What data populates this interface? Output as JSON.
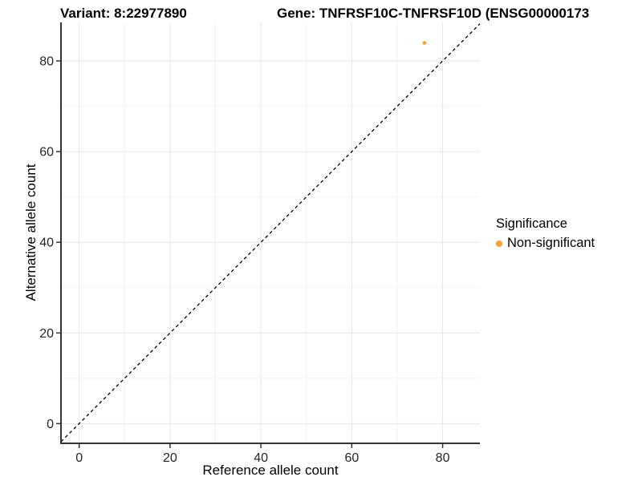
{
  "titles": {
    "variant": "Variant: 8:22977890",
    "gene": "Gene: TNFRSF10C-TNFRSF10D (ENSG00000173"
  },
  "chart_data": {
    "type": "scatter",
    "xlabel": "Reference allele count",
    "ylabel": "Alternative allele count",
    "xlim": [
      -4,
      88.2
    ],
    "ylim": [
      -4.35,
      88.5
    ],
    "x_ticks": [
      0,
      20,
      40,
      60,
      80
    ],
    "y_ticks": [
      0,
      20,
      40,
      60,
      80
    ],
    "x_minor_ticks": [
      10,
      30,
      50,
      70
    ],
    "y_minor_ticks": [
      10,
      30,
      50,
      70
    ],
    "grid": true,
    "series": [
      {
        "name": "Non-significant",
        "color": "#F9A02C",
        "points": [
          {
            "x": 76,
            "y": 84
          }
        ]
      }
    ],
    "reference_line": {
      "type": "identity",
      "style": "dashed",
      "color": "#000000"
    },
    "legend": {
      "title": "Significance",
      "position": "right",
      "entries": [
        {
          "label": "Non-significant",
          "color": "#F9A02C"
        }
      ]
    }
  },
  "style_colors": {
    "axis_line": "#333333",
    "tick_text": "#262626",
    "grid_major": "#E6E6E6",
    "grid_minor": "#F2F2F2",
    "point": "#F9A02C"
  }
}
